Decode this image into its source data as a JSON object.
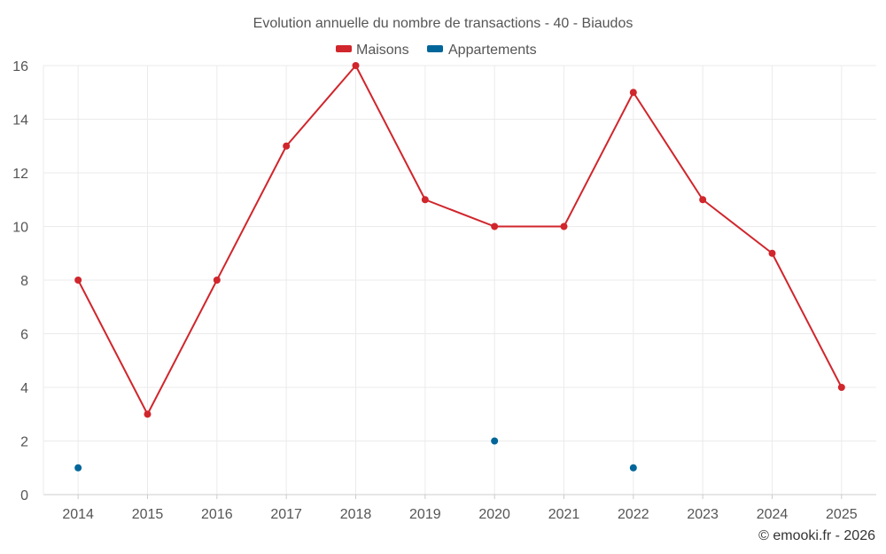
{
  "chart_data": {
    "type": "line",
    "title": "Evolution annuelle du nombre de transactions - 40 - Biaudos",
    "categories": [
      "2014",
      "2015",
      "2016",
      "2017",
      "2018",
      "2019",
      "2020",
      "2021",
      "2022",
      "2023",
      "2024",
      "2025"
    ],
    "series": [
      {
        "name": "Maisons",
        "color": "#d0262c",
        "style": "line-markers",
        "values": [
          8,
          3,
          8,
          13,
          16,
          11,
          10,
          10,
          15,
          11,
          9,
          4
        ]
      },
      {
        "name": "Appartements",
        "color": "#006699",
        "style": "markers",
        "values": [
          1,
          null,
          null,
          null,
          null,
          null,
          2,
          null,
          1,
          null,
          null,
          null
        ]
      }
    ],
    "ylim": [
      0,
      16
    ],
    "yticks": [
      0,
      2,
      4,
      6,
      8,
      10,
      12,
      14,
      16
    ],
    "grid": true,
    "legend": "top-center",
    "xlabel": "",
    "ylabel": ""
  },
  "credit": "© emooki.fr - 2026"
}
